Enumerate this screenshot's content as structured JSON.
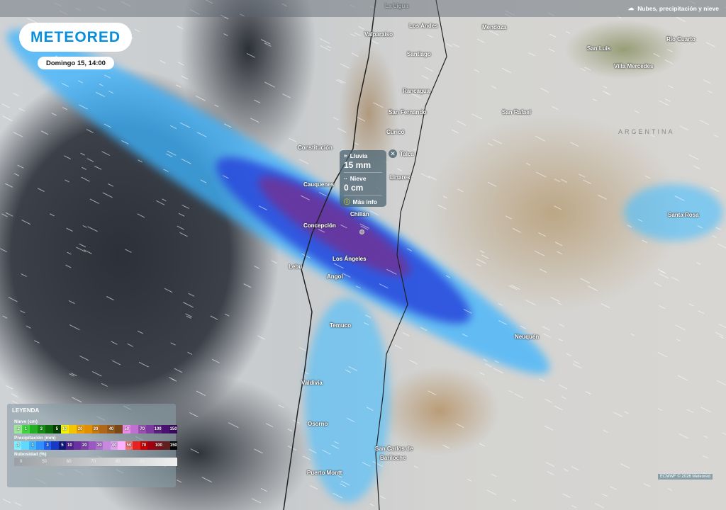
{
  "header": {
    "layer_label": "Nubes, precipitación y nieve",
    "layer_icon": "cloud-rain-icon"
  },
  "brand": {
    "logo": "METEORED",
    "date": "Domingo 15, 14:00"
  },
  "popup": {
    "rain_label": "Lluvia",
    "rain_value": "15 mm",
    "snow_label": "Nieve",
    "snow_value": "0 cm",
    "more_info": "Más info"
  },
  "cities": [
    "La Ligua",
    "Los Andes",
    "Mendoza",
    "Valparaíso",
    "Santiago",
    "San Luis",
    "Río Cuarto",
    "Villa Mercedes",
    "Rancagua",
    "San Fernando",
    "San Rafael",
    "Curicó",
    "Constitución",
    "Talca",
    "Linares",
    "Cauquenes",
    "Chillán",
    "Santa Rosa",
    "Concepción",
    "Los Ángeles",
    "Lebu",
    "Angol",
    "Neuquén",
    "Temuco",
    "Valdivia",
    "Osorno",
    "San Carlos de",
    "Bariloche",
    "Puerto Montt"
  ],
  "country": "ARGENTINA",
  "legend": {
    "title": "LEYENDA",
    "snow_title": "Nieve (cm)",
    "snow": [
      {
        "v": ".2",
        "c": "#9be89b"
      },
      {
        "v": "1",
        "c": "#3fd63f"
      },
      {
        "v": "",
        "c": "#24b024"
      },
      {
        "v": "3",
        "c": "#168c16"
      },
      {
        "v": "",
        "c": "#0b6a0b"
      },
      {
        "v": "5",
        "c": "#053f05"
      },
      {
        "v": "10",
        "c": "#f4f400"
      },
      {
        "v": "",
        "c": "#f4c400"
      },
      {
        "v": "20",
        "c": "#f0a000"
      },
      {
        "v": "",
        "c": "#e09000"
      },
      {
        "v": "30",
        "c": "#c87810"
      },
      {
        "v": "",
        "c": "#b06818"
      },
      {
        "v": "40",
        "c": "#985a18"
      },
      {
        "v": "",
        "c": "#7a4818"
      },
      {
        "v": "50",
        "c": "#f08cf0"
      },
      {
        "v": "",
        "c": "#c070d0"
      },
      {
        "v": "70",
        "c": "#9a50b0"
      },
      {
        "v": "",
        "c": "#7a3aa0"
      },
      {
        "v": "100",
        "c": "#5a2080"
      },
      {
        "v": "",
        "c": "#4a1070"
      },
      {
        "v": "150",
        "c": "#3a0860"
      }
    ],
    "precip_title": "Precipitación (mm)",
    "precip": [
      {
        "v": ".2",
        "c": "#7ff0ff"
      },
      {
        "v": "",
        "c": "#60d8ff"
      },
      {
        "v": "1",
        "c": "#40b8ff"
      },
      {
        "v": "",
        "c": "#3090ff"
      },
      {
        "v": "3",
        "c": "#2060ee"
      },
      {
        "v": "",
        "c": "#1838c8"
      },
      {
        "v": "5",
        "c": "#101880"
      },
      {
        "v": "10",
        "c": "#502090"
      },
      {
        "v": "",
        "c": "#6a30a0"
      },
      {
        "v": "20",
        "c": "#8040b0"
      },
      {
        "v": "",
        "c": "#9a58c0"
      },
      {
        "v": "30",
        "c": "#b070d0"
      },
      {
        "v": "",
        "c": "#c888e0"
      },
      {
        "v": "40",
        "c": "#e0a0f0"
      },
      {
        "v": "",
        "c": "#ffb0ff"
      },
      {
        "v": "50",
        "c": "#f07070"
      },
      {
        "v": "",
        "c": "#e82020"
      },
      {
        "v": "70",
        "c": "#d00000"
      },
      {
        "v": "",
        "c": "#a00010"
      },
      {
        "v": "100",
        "c": "#801018"
      },
      {
        "v": "",
        "c": "#602020"
      },
      {
        "v": "150",
        "c": "#080808"
      }
    ],
    "cloud_title": "Nubosidad (%)",
    "cloud": [
      "0",
      "50",
      "60",
      "70",
      "80",
      "90",
      "100"
    ]
  },
  "credit": "ECMWF © 2026 Meteored"
}
